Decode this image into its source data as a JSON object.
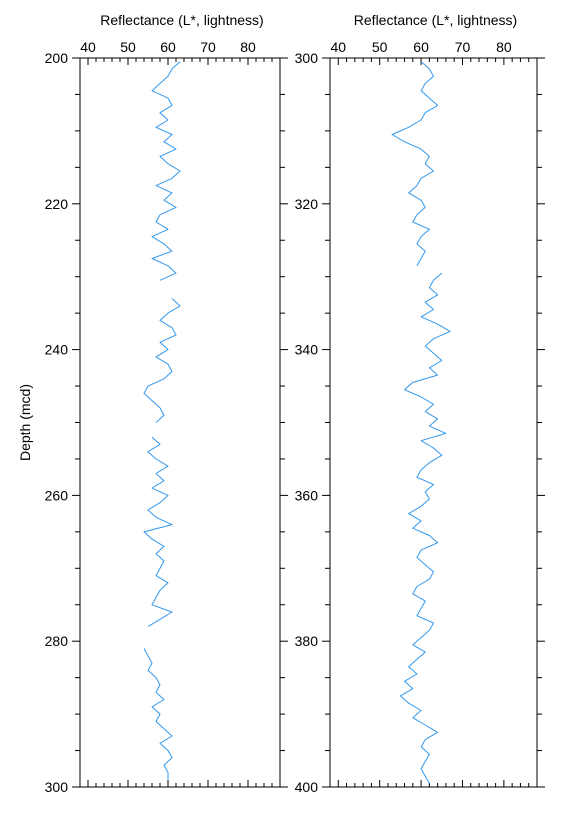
{
  "chart_data": [
    {
      "type": "line",
      "title": "",
      "xlabel": "Reflectance (L*, lightness)",
      "ylabel": "Depth (mcd)",
      "xlim": [
        38,
        88
      ],
      "ylim": [
        200,
        300
      ],
      "x_ticks": [
        "40",
        "50",
        "60",
        "70",
        "80"
      ],
      "y_ticks": [
        "200",
        "220",
        "240",
        "260",
        "280",
        "300"
      ],
      "series_color": "#3399ee",
      "segments": [
        {
          "depth": [
            200.5,
            201.5,
            202.5,
            203.5,
            204.5,
            205.5,
            206.5,
            207.5,
            208.5,
            209.5,
            210.5,
            211.5,
            212.5,
            213.5,
            214.5,
            215.5,
            216.5,
            217.5,
            218.5,
            219.5,
            220.5,
            221.5,
            222.5,
            223.5,
            224.5,
            225.5,
            226.5,
            227.5,
            228.5,
            229.5,
            230.5
          ],
          "value": [
            63,
            61,
            60,
            58,
            56,
            60,
            61,
            58,
            60,
            57,
            61,
            59,
            62,
            58,
            60,
            63,
            61,
            57,
            61,
            59,
            62,
            58,
            57,
            60,
            56,
            59,
            61,
            56,
            60,
            62,
            58
          ]
        },
        {
          "depth": [
            233,
            234,
            235,
            236,
            237,
            238,
            239,
            240,
            241,
            242,
            243,
            244,
            245,
            246,
            247,
            248,
            249,
            250
          ],
          "value": [
            61,
            63,
            60,
            58,
            61,
            62,
            58,
            60,
            57,
            60,
            61,
            59,
            55,
            54,
            56,
            58,
            59,
            57
          ]
        },
        {
          "depth": [
            252,
            253,
            254,
            255,
            256,
            257,
            258,
            259,
            260,
            261,
            262,
            263,
            264,
            265,
            266,
            267,
            268,
            269,
            270,
            271,
            272,
            273,
            274,
            275,
            276,
            277,
            278
          ],
          "value": [
            56,
            58,
            55,
            57,
            60,
            57,
            59,
            56,
            60,
            58,
            55,
            57,
            61,
            54,
            56,
            59,
            57,
            59,
            58,
            57,
            60,
            58,
            57,
            56,
            61,
            58,
            55
          ]
        },
        {
          "depth": [
            281,
            282,
            283,
            284,
            285,
            286,
            287,
            288,
            289,
            290,
            291,
            292,
            293,
            294,
            295,
            296,
            297,
            298,
            299
          ],
          "value": [
            54,
            55,
            56,
            55,
            57,
            58,
            57,
            59,
            56,
            58,
            57,
            59,
            61,
            58,
            60,
            61,
            59,
            60,
            60
          ]
        }
      ]
    },
    {
      "type": "line",
      "title": "",
      "xlabel": "Reflectance (L*, lightness)",
      "ylabel": "",
      "xlim": [
        38,
        88
      ],
      "ylim": [
        300,
        400
      ],
      "x_ticks": [
        "40",
        "50",
        "60",
        "70",
        "80"
      ],
      "y_ticks": [
        "300",
        "320",
        "340",
        "360",
        "380",
        "400"
      ],
      "series_color": "#3399ee",
      "segments": [
        {
          "depth": [
            300.5,
            301.5,
            302.5,
            303.5,
            304.5,
            305.5,
            306.5,
            307.5,
            308.5,
            309.5,
            310.5,
            311.5,
            312.5,
            313.5,
            314.5,
            315.5,
            316.5,
            317.5,
            318.5,
            319.5,
            320.5,
            321.5,
            322.5,
            323.5,
            324.5,
            325.5,
            326.5,
            327.5,
            328.5
          ],
          "value": [
            60,
            62,
            63,
            61,
            60,
            62,
            64,
            61,
            60,
            57,
            53,
            56,
            60,
            62,
            61,
            63,
            60,
            59,
            57,
            60,
            61,
            59,
            58,
            62,
            60,
            59,
            61,
            60,
            59
          ]
        },
        {
          "depth": [
            329.5,
            330.5,
            331.5,
            332.5,
            333.5,
            334.5,
            335.5,
            336.5,
            337.5,
            338.5,
            339.5,
            340.5,
            341.5,
            342.5,
            343.5,
            344.5,
            345.5,
            346.5,
            347.5,
            348.5,
            349.5,
            350.5,
            351.5,
            352.5,
            353.5,
            354.5,
            355.5,
            356.5,
            357.5,
            358.5,
            359.5,
            360.5,
            361.5,
            362.5,
            363.5,
            364.5,
            365.5,
            366.5,
            367.5,
            368.5,
            369.5,
            370.5,
            371.5,
            372.5,
            373.5,
            374.5,
            375.5,
            376.5,
            377.5,
            378.5,
            379.5,
            380.5,
            381.5,
            382.5,
            383.5,
            384.5,
            385.5,
            386.5,
            387.5,
            388.5,
            389.5,
            390.5,
            391.5,
            392.5,
            393.5,
            394.5,
            395.5,
            396.5,
            397.5,
            398.5,
            399.5
          ],
          "value": [
            65,
            63,
            62,
            64,
            61,
            63,
            60,
            64,
            67,
            63,
            61,
            63,
            65,
            62,
            64,
            58,
            56,
            60,
            63,
            61,
            64,
            62,
            66,
            60,
            63,
            65,
            62,
            60,
            59,
            63,
            61,
            62,
            60,
            57,
            60,
            58,
            62,
            64,
            60,
            59,
            61,
            63,
            62,
            59,
            58,
            61,
            60,
            59,
            63,
            62,
            60,
            58,
            61,
            59,
            57,
            59,
            56,
            58,
            55,
            57,
            60,
            58,
            61,
            64,
            61,
            60,
            62,
            61,
            60,
            61,
            62
          ]
        }
      ]
    }
  ]
}
